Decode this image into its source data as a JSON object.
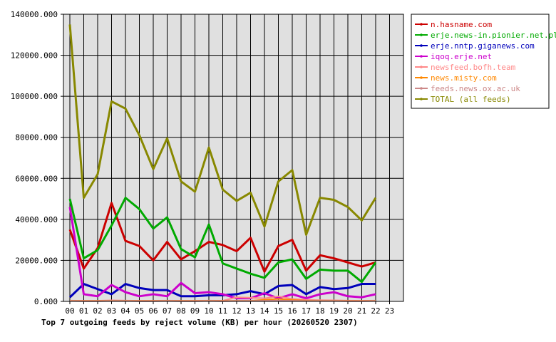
{
  "chart_data": {
    "type": "line",
    "title": "Top 7 outgoing feeds by reject volume (KB) per hour (20260520 2307)",
    "xlabel": "",
    "ylabel": "",
    "ylim": [
      0,
      140000
    ],
    "yticks": [
      "0.000",
      "20000.000",
      "40000.000",
      "60000.000",
      "80000.000",
      "100000.000",
      "120000.000",
      "140000.000"
    ],
    "categories": [
      "00",
      "01",
      "02",
      "03",
      "04",
      "05",
      "06",
      "07",
      "08",
      "09",
      "10",
      "11",
      "12",
      "13",
      "14",
      "15",
      "16",
      "17",
      "18",
      "19",
      "20",
      "21",
      "22",
      "23"
    ],
    "grid": true,
    "legend_position": "right",
    "series": [
      {
        "name": "n.hasname.com",
        "color": "#cc0000",
        "values": [
          35000,
          16000,
          26000,
          48000,
          29500,
          27000,
          20000,
          29000,
          20500,
          24500,
          29000,
          27500,
          24500,
          31000,
          14500,
          27000,
          30000,
          15000,
          22500,
          21000,
          19000,
          17000,
          19000,
          null
        ]
      },
      {
        "name": "erje.news-in.pionier.net.pl",
        "color": "#00aa00",
        "values": [
          50000,
          21000,
          25000,
          37000,
          50500,
          45000,
          35500,
          41000,
          25500,
          21500,
          37500,
          18500,
          16000,
          13500,
          11500,
          19000,
          20500,
          11000,
          15500,
          15000,
          15000,
          9500,
          19000,
          null
        ]
      },
      {
        "name": "erje.nntp.giganews.com",
        "color": "#0000bb",
        "values": [
          2000,
          8500,
          6000,
          3500,
          8500,
          6500,
          5500,
          5500,
          2500,
          2500,
          3000,
          3000,
          3500,
          5000,
          3500,
          7500,
          8000,
          3500,
          7000,
          6000,
          6500,
          8500,
          8500,
          null
        ]
      },
      {
        "name": "iqoq.erje.net",
        "color": "#cc00cc",
        "values": [
          46000,
          3500,
          2500,
          8000,
          4500,
          2500,
          3500,
          2500,
          9000,
          4000,
          4500,
          3500,
          1500,
          1500,
          4000,
          1500,
          3500,
          1500,
          3500,
          4500,
          2500,
          2000,
          3500,
          null
        ]
      },
      {
        "name": "newsfeed.bofh.team",
        "color": "#ff8888",
        "values": [
          400,
          300,
          300,
          500,
          400,
          300,
          300,
          400,
          300,
          300,
          400,
          300,
          2000,
          1800,
          1500,
          2500,
          1200,
          800,
          600,
          500,
          400,
          300,
          400,
          null
        ]
      },
      {
        "name": "news.misty.com",
        "color": "#ff8800",
        "values": [
          300,
          200,
          200,
          300,
          300,
          200,
          200,
          300,
          200,
          200,
          300,
          200,
          300,
          300,
          800,
          1200,
          700,
          400,
          300,
          300,
          200,
          200,
          300,
          null
        ]
      },
      {
        "name": "feeds.news.ox.ac.uk",
        "color": "#cc8888",
        "values": [
          200,
          100,
          100,
          200,
          200,
          100,
          100,
          200,
          100,
          100,
          200,
          100,
          200,
          200,
          300,
          400,
          300,
          200,
          200,
          200,
          100,
          100,
          200,
          null
        ]
      },
      {
        "name": "TOTAL (all feeds)",
        "color": "#888800",
        "values": [
          135000,
          50500,
          62000,
          97500,
          94000,
          81000,
          64500,
          79500,
          58500,
          53500,
          75000,
          54500,
          49000,
          53000,
          36500,
          58500,
          64000,
          32500,
          50500,
          49500,
          46000,
          39500,
          50500,
          null
        ]
      }
    ]
  }
}
